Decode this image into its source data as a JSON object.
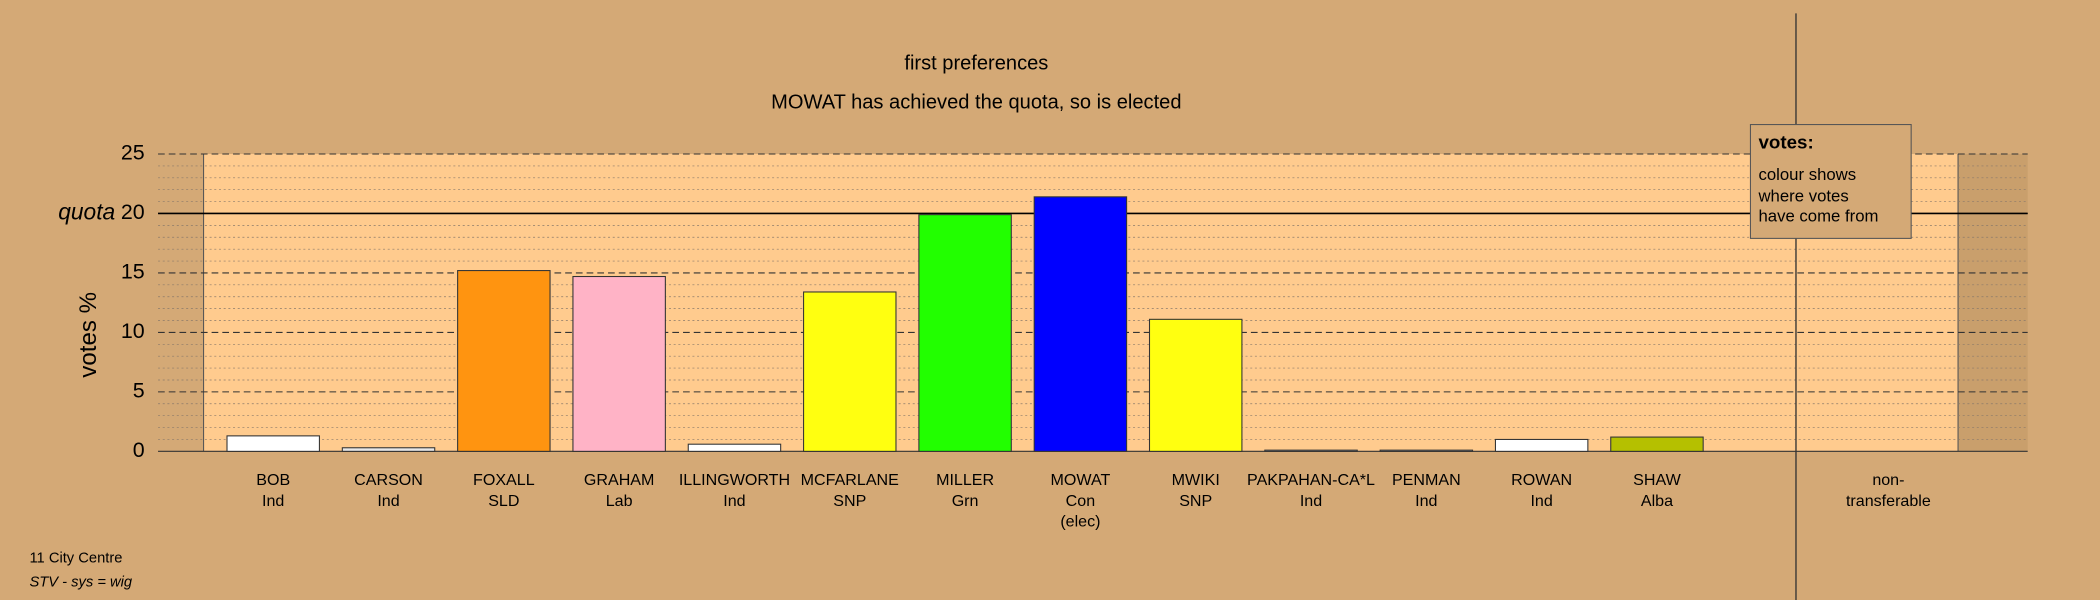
{
  "chart_data": {
    "type": "bar",
    "title": "first preferences",
    "subtitle": "MOWAT has achieved the quota, so is elected",
    "y_label": "votes %",
    "category_lines": [
      [
        "BOB",
        "Ind"
      ],
      [
        "CARSON",
        "Ind"
      ],
      [
        "FOXALL",
        "SLD"
      ],
      [
        "GRAHAM",
        "Lab"
      ],
      [
        "ILLINGWORTH",
        "Ind"
      ],
      [
        "MCFARLANE",
        "SNP"
      ],
      [
        "MILLER",
        "Grn"
      ],
      [
        "MOWAT",
        "Con",
        "(elec)"
      ],
      [
        "MWIKI",
        "SNP"
      ],
      [
        "PAKPAHAN-CA*L",
        "Ind"
      ],
      [
        "PENMAN",
        "Ind"
      ],
      [
        "ROWAN",
        "Ind"
      ],
      [
        "SHAW",
        "Alba"
      ],
      [
        "non-",
        "transferable"
      ]
    ],
    "values": [
      1.3,
      0.3,
      15.2,
      14.7,
      0.6,
      13.4,
      19.9,
      21.4,
      11.1,
      0.1,
      0.1,
      1.0,
      1.2,
      0
    ],
    "colors": [
      "#ffffff",
      "#e8e8e8",
      "#ff9410",
      "#ffb3c6",
      "#ffffff",
      "#ffff10",
      "#22ff00",
      "#0000ff",
      "#ffff10",
      "#ffffff",
      "#ffffff",
      "#ffffff",
      "#b5c000",
      "#ffffff"
    ],
    "ylim": [
      0,
      25
    ],
    "yticks": [
      0,
      5,
      10,
      15,
      20,
      25
    ],
    "minor_yticks": [
      1,
      2,
      3,
      4,
      6,
      7,
      8,
      9,
      11,
      12,
      13,
      14,
      16,
      17,
      18,
      19,
      21,
      22,
      23,
      24
    ],
    "quota": {
      "label": "quota",
      "value": 20
    },
    "legend": {
      "title": "votes:",
      "lines": [
        "colour shows",
        "where votes",
        "have come from"
      ]
    },
    "footer": [
      "11 City Centre",
      "STV - sys = wig"
    ]
  }
}
